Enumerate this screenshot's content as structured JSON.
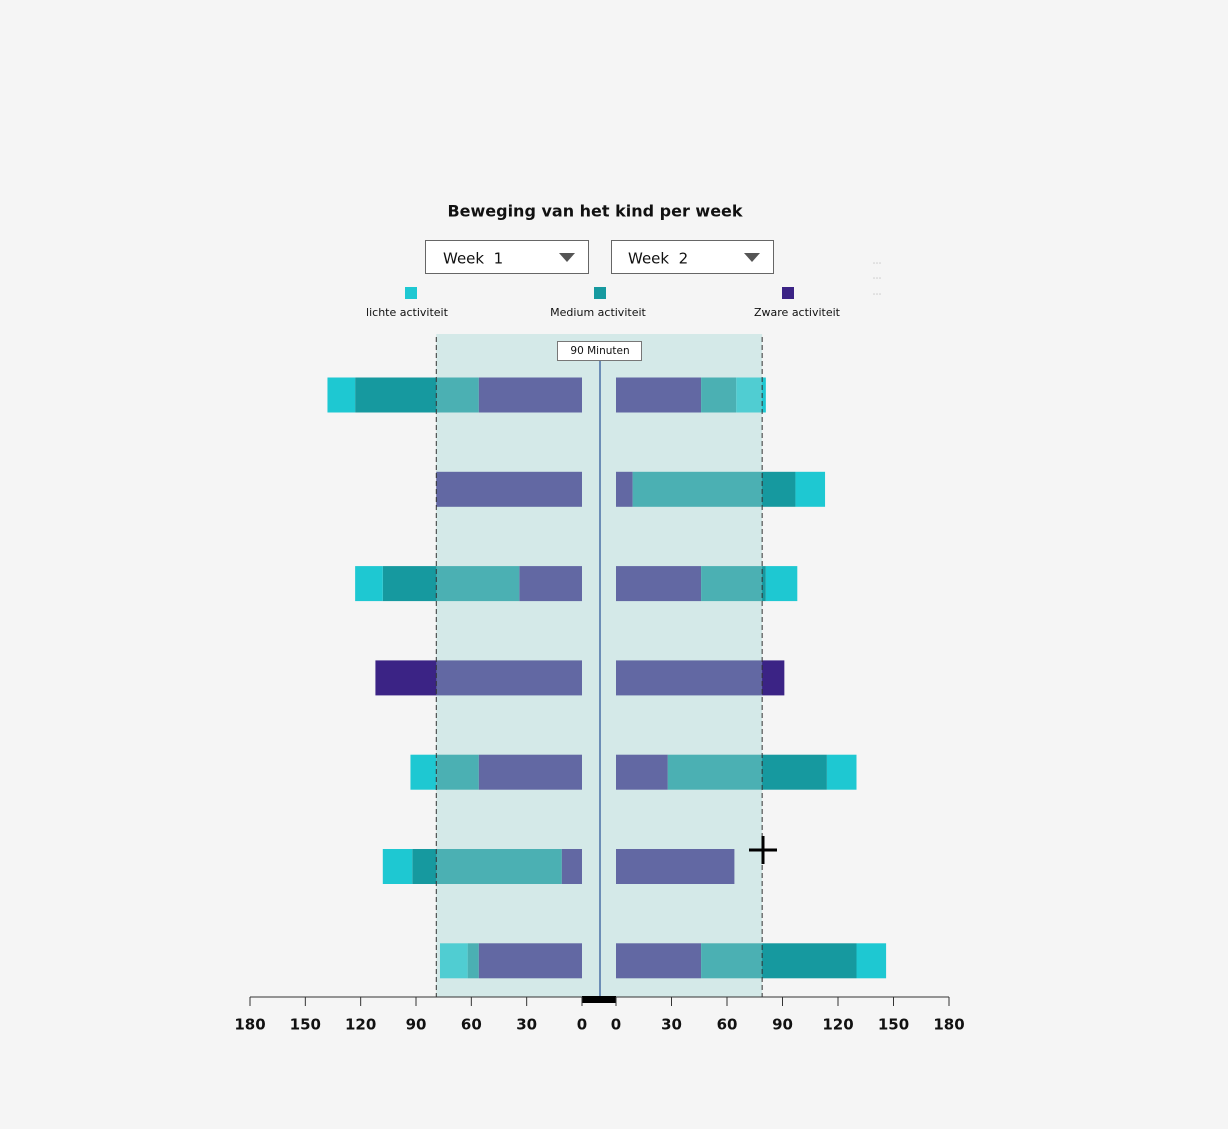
{
  "chart_data": {
    "type": "butterfly",
    "title": "Beweging van het kind per week",
    "selectors": [
      "Week  1",
      "Week  2"
    ],
    "annotation": "90 Minuten",
    "band_limit": 79,
    "band_color": "#a0d6d4",
    "series": [
      {
        "name": "lichte activiteit",
        "color": "#1ec8d2",
        "left": [
          15,
          0,
          15,
          0,
          14,
          16,
          15
        ],
        "right": [
          16,
          16,
          17,
          0,
          16,
          0,
          16
        ]
      },
      {
        "name": "Medium activiteit",
        "color": "#16999f",
        "left": [
          67,
          0,
          74,
          0,
          23,
          81,
          6
        ],
        "right": [
          19,
          88,
          35,
          0,
          86,
          0,
          84
        ]
      },
      {
        "name": "Zware activiteit",
        "color": "#3b2385",
        "left": [
          56,
          79,
          34,
          112,
          56,
          11,
          56
        ],
        "right": [
          46,
          9,
          46,
          91,
          28,
          64,
          46
        ]
      }
    ],
    "xlim": [
      0,
      180
    ],
    "xticks": [
      0,
      30,
      60,
      90,
      120,
      150,
      180
    ]
  }
}
